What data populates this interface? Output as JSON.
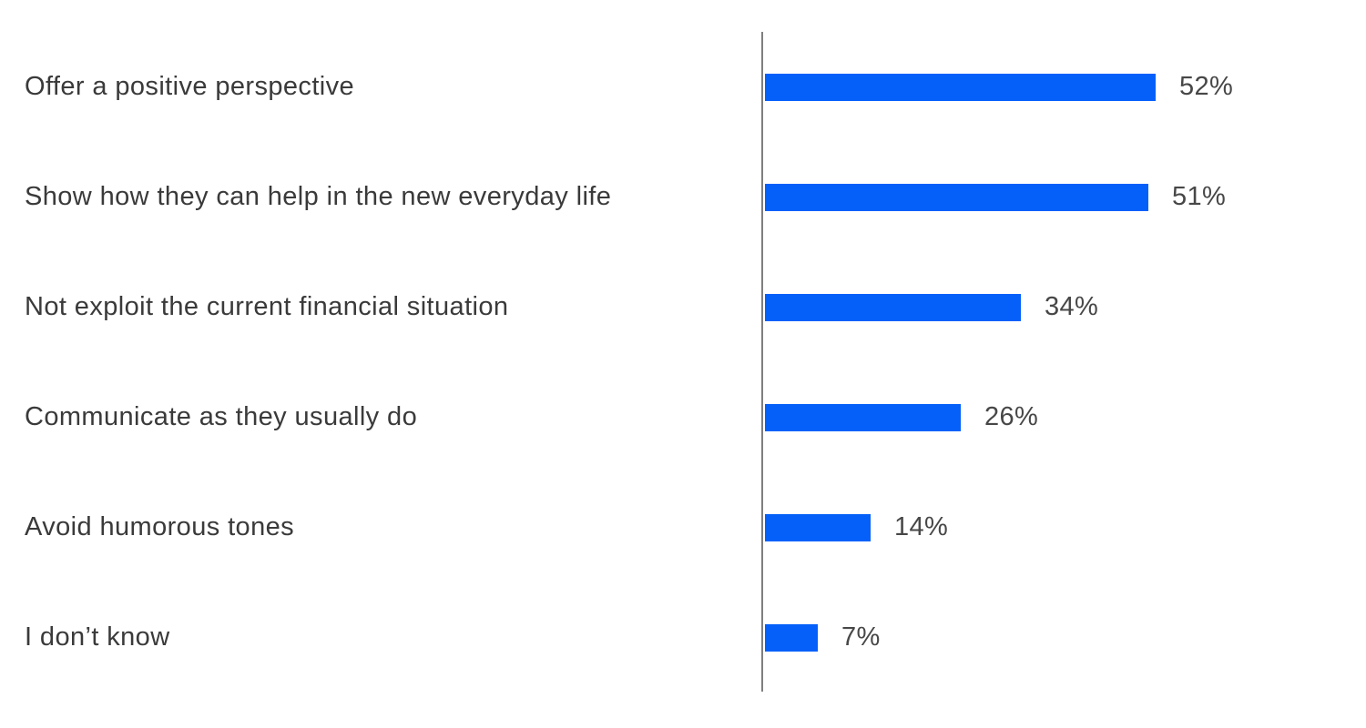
{
  "chart_data": {
    "type": "bar",
    "orientation": "horizontal",
    "title": "",
    "xlabel": "",
    "ylabel": "",
    "categories": [
      "Offer a positive perspective",
      "Show how they can help in the new everyday life",
      "Not exploit the current financial situation",
      "Communicate as they usually do",
      "Avoid humorous tones",
      "I don’t know"
    ],
    "values": [
      52,
      51,
      34,
      26,
      14,
      7
    ],
    "value_suffix": "%",
    "value_labels_position": "outside-end",
    "xlim": [
      0,
      80
    ],
    "grid": false,
    "legend": false,
    "bar_color": "#0560fa",
    "axis_line_color": "#7f7f7f",
    "category_label_color": "#3a3a3a",
    "value_label_color": "#474747",
    "background_color": "#ffffff"
  }
}
